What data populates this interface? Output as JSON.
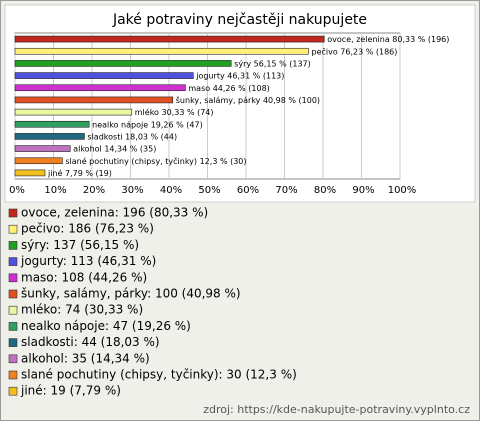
{
  "chart_data": {
    "type": "bar",
    "orientation": "horizontal",
    "title": "Jaké potraviny nejčastěji nakupujete",
    "categories": [
      "ovoce, zelenina",
      "pečivo",
      "sýry",
      "jogurty",
      "maso",
      "šunky, salámy, párky",
      "mléko",
      "nealko nápoje",
      "sladkosti",
      "alkohol",
      "slané pochutiny (chipsy, tyčinky)",
      "jiné"
    ],
    "values": [
      80.33,
      76.23,
      56.15,
      46.31,
      44.26,
      40.98,
      30.33,
      19.26,
      18.03,
      14.34,
      12.3,
      7.79
    ],
    "value_labels": [
      "80,33 % (196)",
      "76,23 % (186)",
      "56,15 % (137)",
      "46,31 % (113)",
      "44,26 % (108)",
      "40,98 % (100)",
      "30,33 % (74)",
      "19,26 % (47)",
      "18,03 % (44)",
      "14,34 % (35)",
      "12,3 % (30)",
      "7,79 % (19)"
    ],
    "colors": [
      "#c0281e",
      "#fff07a",
      "#22a022",
      "#5050e0",
      "#d030d0",
      "#e05020",
      "#e8f8a0",
      "#30a060",
      "#206880",
      "#c070c0",
      "#f08020",
      "#f0c020"
    ],
    "legend": [
      "ovoce, zelenina: 196 (80,33 %)",
      "pečivo: 186 (76,23 %)",
      "sýry: 137 (56,15 %)",
      "jogurty: 113 (46,31 %)",
      "maso: 108 (44,26 %)",
      "šunky, salámy, párky: 100 (40,98 %)",
      "mléko: 74 (30,33 %)",
      "nealko nápoje: 47 (19,26 %)",
      "sladkosti: 44 (18,03 %)",
      "alkohol: 35 (14,34 %)",
      "slané pochutiny (chipsy, tyčinky): 30 (12,3 %)",
      "jiné: 19 (7,79 %)"
    ],
    "xlim": [
      0,
      100
    ],
    "xticks": [
      {
        "value": 0,
        "label": "0%"
      },
      {
        "value": 10,
        "label": "10%"
      },
      {
        "value": 20,
        "label": "20%"
      },
      {
        "value": 30,
        "label": "30%"
      },
      {
        "value": 40,
        "label": "40%"
      },
      {
        "value": 50,
        "label": "50%"
      },
      {
        "value": 60,
        "label": "60%"
      },
      {
        "value": 70,
        "label": "70%"
      },
      {
        "value": 80,
        "label": "80%"
      },
      {
        "value": 90,
        "label": "90%"
      },
      {
        "value": 100,
        "label": "100%"
      }
    ],
    "grid": true,
    "source": "zdroj: https://kde-nakupujte-potraviny.vyplnto.cz"
  }
}
